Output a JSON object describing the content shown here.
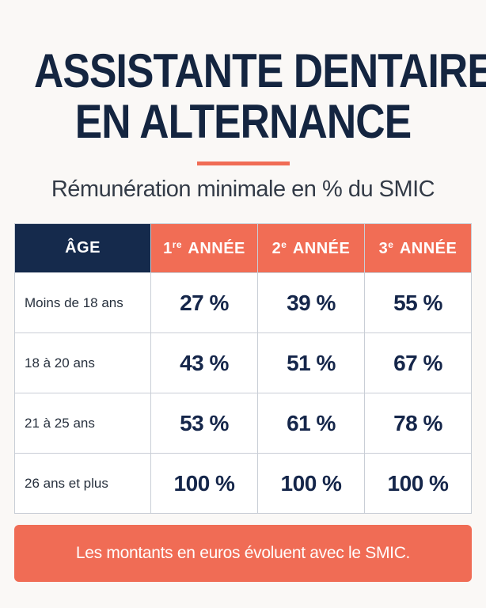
{
  "title": {
    "line1": "ASSISTANTE DENTAIRE",
    "line2": "EN ALTERNANCE"
  },
  "subtitle": "Rémunération minimale en % du SMIC",
  "colors": {
    "navy": "#152a4c",
    "coral": "#f06c55",
    "background": "#faf8f6"
  },
  "table": {
    "headers": {
      "age": "ÂGE",
      "year1": {
        "num": "1",
        "sup": "re",
        "label": "ANNÉE"
      },
      "year2": {
        "num": "2",
        "sup": "e",
        "label": "ANNÉE"
      },
      "year3": {
        "num": "3",
        "sup": "e",
        "label": "ANNÉE"
      }
    },
    "rows": [
      {
        "age": "Moins de 18 ans",
        "y1": "27 %",
        "y2": "39 %",
        "y3": "55 %"
      },
      {
        "age": "18 à 20 ans",
        "y1": "43 %",
        "y2": "51 %",
        "y3": "67 %"
      },
      {
        "age": "21 à 25 ans",
        "y1": "53 %",
        "y2": "61 %",
        "y3": "78 %"
      },
      {
        "age": "26 ans et plus",
        "y1": "100 %",
        "y2": "100 %",
        "y3": "100 %"
      }
    ]
  },
  "footer": "Les montants en euros évoluent avec le SMIC."
}
